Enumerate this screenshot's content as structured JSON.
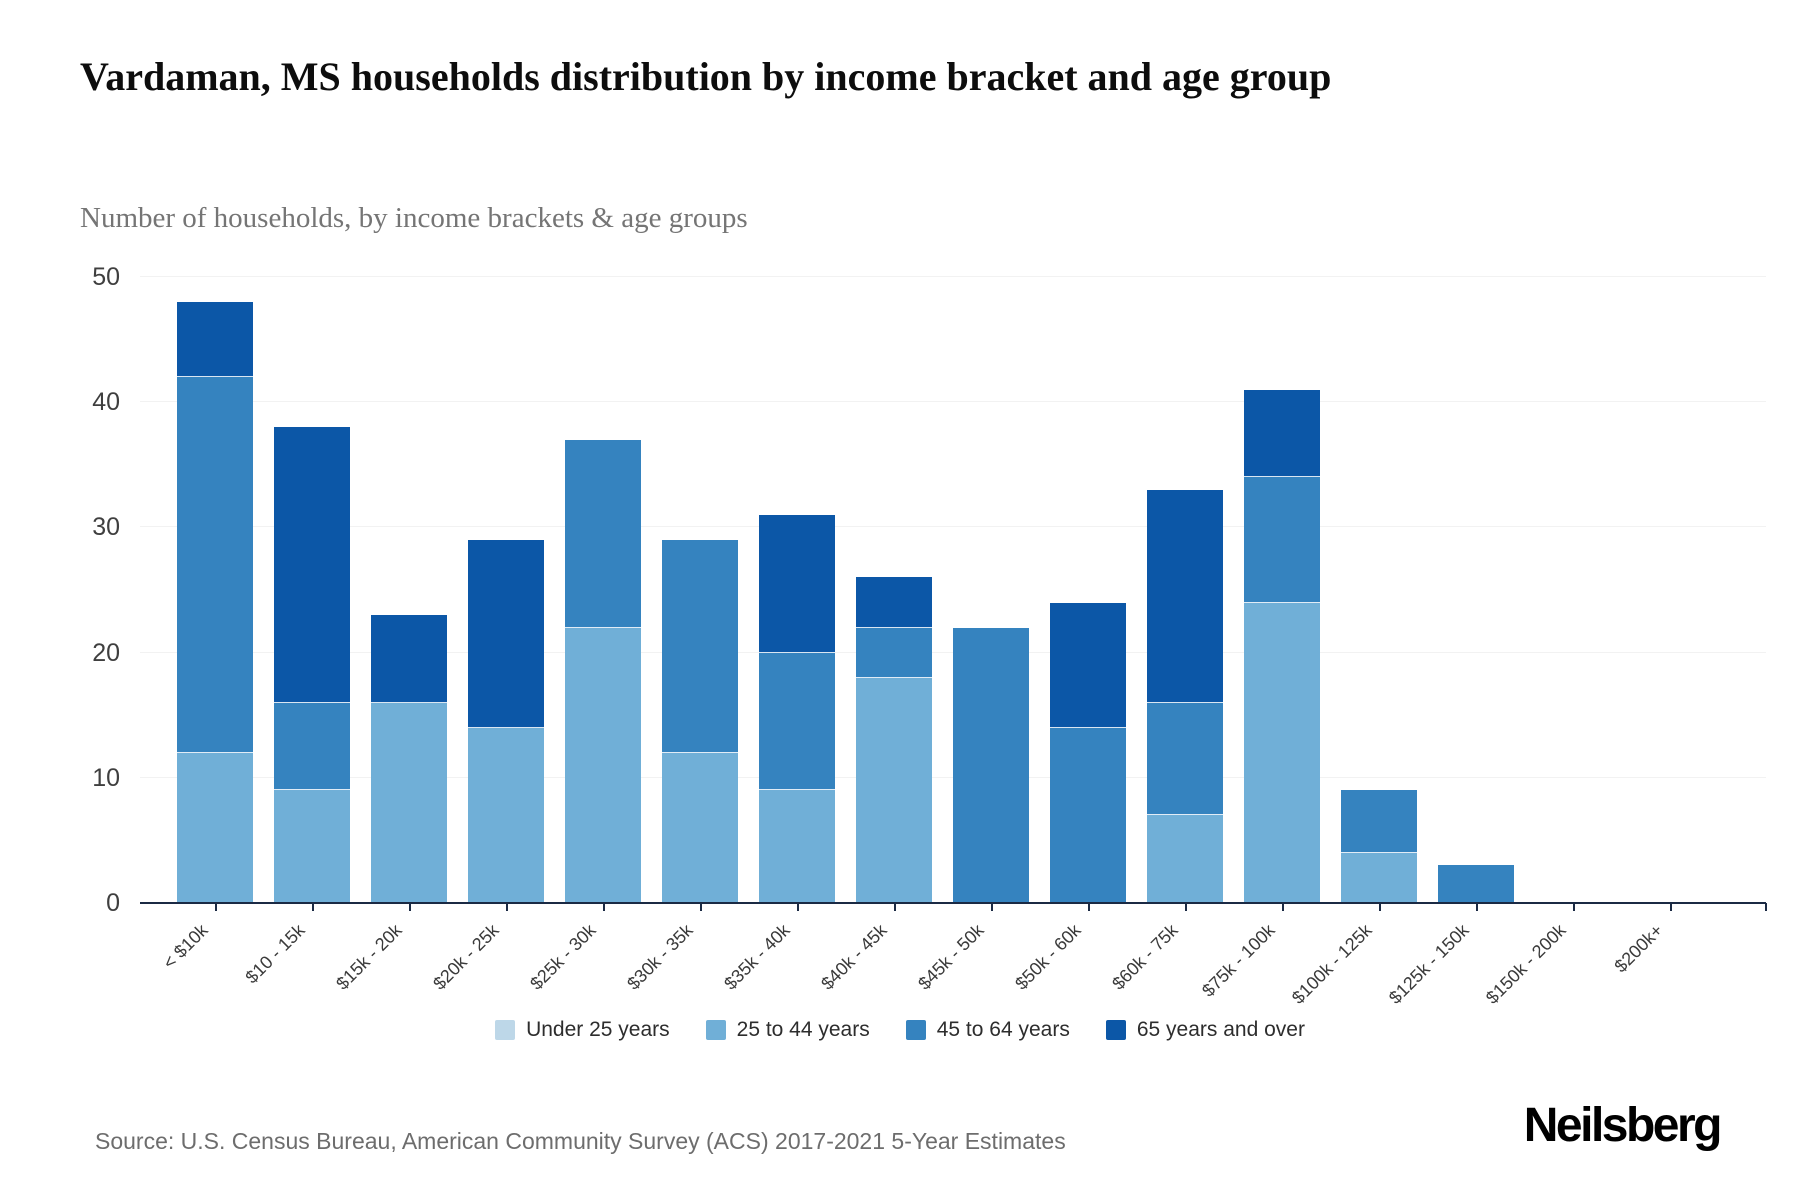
{
  "header": {
    "title": "Vardaman, MS households distribution by income bracket and age group",
    "subtitle": "Number of households, by income brackets & age groups"
  },
  "chart_data": {
    "type": "bar",
    "stacked": true,
    "title": "Vardaman, MS households distribution by income bracket and age group",
    "xlabel": "",
    "ylabel": "Number of households",
    "categories": [
      "< $10k",
      "$10 - 15k",
      "$15k - 20k",
      "$20k - 25k",
      "$25k - 30k",
      "$30k - 35k",
      "$35k - 40k",
      "$40k - 45k",
      "$45k - 50k",
      "$50k - 60k",
      "$60k - 75k",
      "$75k - 100k",
      "$100k - 125k",
      "$125k - 150k",
      "$150k - 200k",
      "$200k+"
    ],
    "series": [
      {
        "name": "Under 25 years",
        "color": "#bdd7e8",
        "values": [
          0,
          0,
          0,
          0,
          0,
          0,
          0,
          0,
          0,
          0,
          0,
          0,
          0,
          0,
          0,
          0
        ]
      },
      {
        "name": "25 to 44 years",
        "color": "#70afd7",
        "values": [
          12,
          9,
          16,
          14,
          22,
          12,
          9,
          18,
          0,
          0,
          7,
          24,
          4,
          0,
          0,
          0
        ]
      },
      {
        "name": "45 to 64 years",
        "color": "#3583bf",
        "values": [
          30,
          7,
          0,
          0,
          15,
          17,
          11,
          4,
          22,
          14,
          9,
          10,
          5,
          3,
          0,
          0
        ]
      },
      {
        "name": "65 years and over",
        "color": "#0c57a7",
        "values": [
          6,
          22,
          7,
          15,
          0,
          0,
          11,
          4,
          0,
          10,
          17,
          7,
          0,
          0,
          0,
          0
        ]
      }
    ],
    "totals": [
      48,
      38,
      23,
      29,
      37,
      29,
      31,
      26,
      22,
      24,
      33,
      41,
      9,
      3,
      0,
      0
    ],
    "ylim": [
      0,
      50
    ],
    "yticks": [
      0,
      10,
      20,
      30,
      40,
      50
    ],
    "grid": "horizontal",
    "legend_position": "bottom"
  },
  "footer": {
    "source": "Source: U.S. Census Bureau, American Community Survey (ACS) 2017-2021 5-Year Estimates",
    "brand": "Neilsberg"
  },
  "colors": {
    "axis": "#1b2a44",
    "grid": "#f2f2f2",
    "separator": "rgba(255,255,255,0.85)"
  }
}
